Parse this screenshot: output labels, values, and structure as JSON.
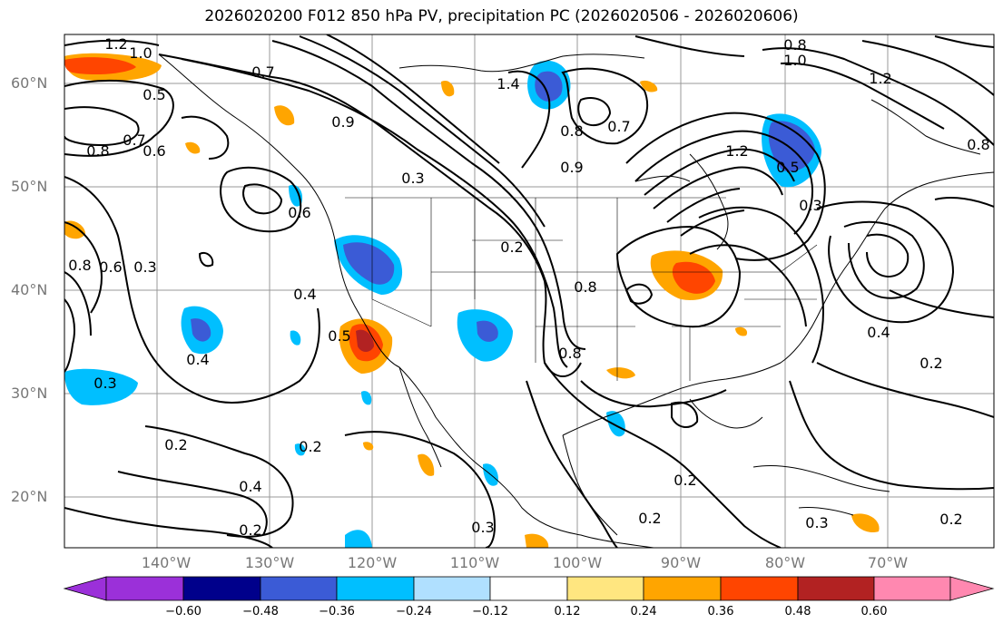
{
  "title": "2026020200 F012 850 hPa PV, precipitation PC (2026020506 - 2026020606)",
  "axes": {
    "lat_labels": [
      "60°N",
      "50°N",
      "40°N",
      "30°N",
      "20°N"
    ],
    "lon_labels": [
      "140°W",
      "130°W",
      "120°W",
      "110°W",
      "100°W",
      "90°W",
      "80°W",
      "70°W"
    ]
  },
  "colorbar": {
    "ticks": [
      "−0.60",
      "−0.48",
      "−0.36",
      "−0.24",
      "−0.12",
      "0.12",
      "0.24",
      "0.36",
      "0.48",
      "0.60"
    ],
    "colors": [
      "#9b30d9",
      "#00008b",
      "#3b5bd6",
      "#00bfff",
      "#b0e0ff",
      "#ffffff",
      "#ffe680",
      "#ffa500",
      "#ff4500",
      "#b22222",
      "#ff88b0"
    ]
  },
  "contour_labels": [
    "1.2",
    "1.0",
    "0.5",
    "0.7",
    "0.6",
    "0.8",
    "0.7",
    "0.9",
    "0.3",
    "0.6",
    "0.2",
    "1.4",
    "0.7",
    "0.8",
    "0.9",
    "0.8",
    "1.2",
    "0.3",
    "0.5",
    "1.0",
    "1.2",
    "0.8",
    "0.8",
    "0.6",
    "0.3",
    "0.4",
    "0.5",
    "0.4",
    "0.3",
    "0.2",
    "0.2",
    "0.4",
    "0.2",
    "0.8",
    "0.8",
    "0.4",
    "0.2",
    "0.2",
    "0.3",
    "0.3",
    "0.2",
    "0.2"
  ]
}
